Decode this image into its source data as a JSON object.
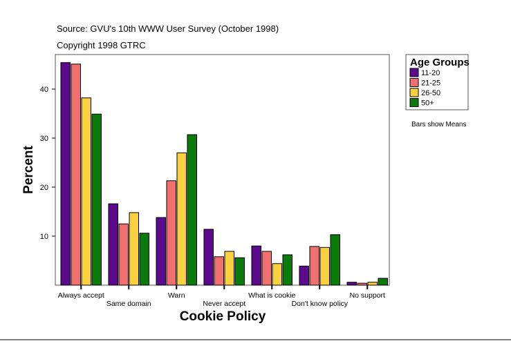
{
  "chart_data": {
    "type": "bar",
    "source": "Source: GVU's 10th WWW User Survey (October 1998)",
    "copyright": "Copyright 1998 GTRC",
    "xlabel": "Cookie Policy",
    "ylabel": "Percent",
    "note": "Bars show Means",
    "legend_title": "Age Groups",
    "legend_position": "right",
    "ylim": [
      0,
      47
    ],
    "yticks": [
      10,
      20,
      30,
      40
    ],
    "grid": false,
    "categories": [
      "Always accept",
      "Same domain",
      "Warn",
      "Never accept",
      "What is cookie",
      "Don't know policy",
      "No support"
    ],
    "series": [
      {
        "name": "11-20",
        "color": "#5a0a8a",
        "values": [
          45.4,
          16.6,
          13.8,
          11.4,
          8.0,
          3.9,
          0.6
        ]
      },
      {
        "name": "21-25",
        "color": "#f07070",
        "values": [
          45.1,
          12.5,
          21.3,
          5.8,
          6.9,
          7.9,
          0.4
        ]
      },
      {
        "name": "26-50",
        "color": "#f8d040",
        "values": [
          38.2,
          14.8,
          27.0,
          6.9,
          4.4,
          7.7,
          0.6
        ]
      },
      {
        "name": "50+",
        "color": "#0a7a0a",
        "values": [
          34.9,
          10.6,
          30.7,
          5.6,
          6.2,
          10.3,
          1.4
        ]
      }
    ]
  }
}
